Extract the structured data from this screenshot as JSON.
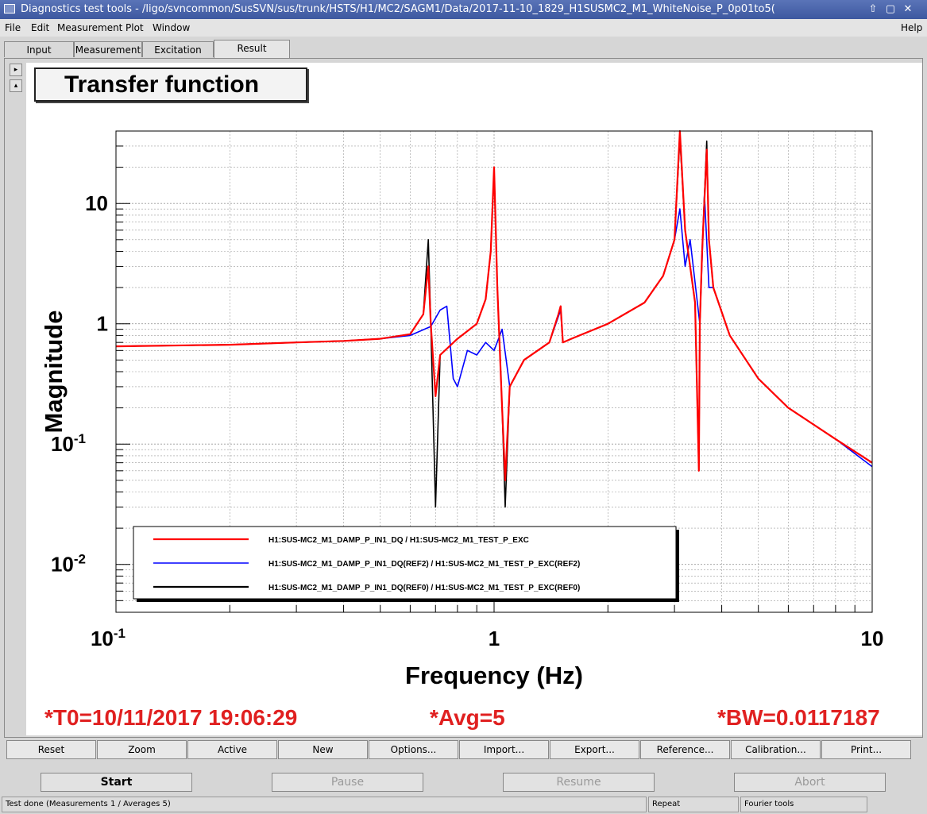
{
  "window": {
    "title": "Diagnostics test tools - /ligo/svncommon/SusSVN/sus/trunk/HSTS/H1/MC2/SAGM1/Data/2017-11-10_1829_H1SUSMC2_M1_WhiteNoise_P_0p01to5("
  },
  "menu": {
    "file": "File",
    "edit": "Edit",
    "measurement": "Measurement",
    "plot": "Plot",
    "window": "Window",
    "help": "Help"
  },
  "tabs": [
    "Input",
    "Measurement",
    "Excitation",
    "Result"
  ],
  "plot": {
    "title": "Transfer function"
  },
  "chart_data": {
    "type": "line",
    "xlabel": "Frequency (Hz)",
    "ylabel": "Magnitude",
    "xscale": "log",
    "yscale": "log",
    "xlim": [
      0.1,
      10
    ],
    "ylim": [
      0.004,
      40
    ],
    "x_ticks": [
      "10^-1",
      "1",
      "10"
    ],
    "y_ticks": [
      "10^-2",
      "10^-1",
      "1",
      "10"
    ],
    "grid": true,
    "legend_position": "bottom-center",
    "series": [
      {
        "name": "H1:SUS-MC2_M1_DAMP_P_IN1_DQ / H1:SUS-MC2_M1_TEST_P_EXC",
        "color": "#ff0000",
        "x": [
          0.1,
          0.2,
          0.3,
          0.4,
          0.5,
          0.6,
          0.65,
          0.67,
          0.68,
          0.7,
          0.72,
          0.8,
          0.9,
          0.95,
          0.98,
          1.0,
          1.02,
          1.05,
          1.07,
          1.1,
          1.2,
          1.4,
          1.48,
          1.5,
          1.52,
          1.6,
          2.0,
          2.5,
          2.8,
          3.0,
          3.1,
          3.2,
          3.3,
          3.4,
          3.48,
          3.5,
          3.55,
          3.65,
          3.7,
          3.8,
          4.2,
          5.0,
          6.0,
          8.0,
          10.0
        ],
        "y": [
          0.65,
          0.67,
          0.7,
          0.72,
          0.75,
          0.82,
          1.2,
          3.0,
          1.0,
          0.25,
          0.55,
          0.75,
          1.0,
          1.6,
          4.0,
          20.0,
          2.0,
          0.2,
          0.05,
          0.3,
          0.5,
          0.7,
          1.2,
          1.4,
          0.7,
          0.75,
          1.0,
          1.5,
          2.5,
          5.0,
          40.0,
          6.0,
          3.0,
          1.5,
          0.06,
          1.0,
          4.0,
          28.0,
          5.0,
          2.0,
          0.8,
          0.35,
          0.2,
          0.11,
          0.07
        ]
      },
      {
        "name": "H1:SUS-MC2_M1_DAMP_P_IN1_DQ(REF2) / H1:SUS-MC2_M1_TEST_P_EXC(REF2)",
        "color": "#0000ff",
        "x": [
          0.1,
          0.2,
          0.3,
          0.4,
          0.5,
          0.6,
          0.68,
          0.72,
          0.75,
          0.78,
          0.8,
          0.85,
          0.9,
          0.95,
          1.0,
          1.05,
          1.1,
          1.2,
          1.4,
          1.5,
          1.52,
          1.6,
          2.0,
          2.5,
          2.8,
          3.0,
          3.1,
          3.2,
          3.3,
          3.5,
          3.6,
          3.7,
          3.8,
          4.2,
          5.0,
          6.0,
          8.0,
          10.0
        ],
        "y": [
          0.65,
          0.67,
          0.7,
          0.72,
          0.75,
          0.8,
          0.95,
          1.3,
          1.4,
          0.35,
          0.3,
          0.6,
          0.55,
          0.7,
          0.6,
          0.9,
          0.3,
          0.5,
          0.7,
          1.3,
          0.7,
          0.75,
          1.0,
          1.5,
          2.5,
          5.0,
          9.0,
          3.0,
          5.0,
          1.0,
          12.0,
          2.0,
          2.0,
          0.8,
          0.35,
          0.2,
          0.11,
          0.065
        ]
      },
      {
        "name": "H1:SUS-MC2_M1_DAMP_P_IN1_DQ(REF0) / H1:SUS-MC2_M1_TEST_P_EXC(REF0)",
        "color": "#000000",
        "x": [
          0.1,
          0.2,
          0.3,
          0.4,
          0.5,
          0.6,
          0.65,
          0.67,
          0.68,
          0.7,
          0.72,
          0.8,
          0.9,
          0.95,
          0.98,
          1.0,
          1.02,
          1.05,
          1.07,
          1.1,
          1.2,
          1.4,
          1.48,
          1.5,
          1.52,
          1.6,
          2.0,
          2.5,
          2.8,
          3.0,
          3.1,
          3.2,
          3.3,
          3.4,
          3.48,
          3.5,
          3.55,
          3.65,
          3.7,
          3.8,
          4.2,
          5.0,
          6.0,
          8.0,
          10.0
        ],
        "y": [
          0.65,
          0.67,
          0.7,
          0.72,
          0.75,
          0.82,
          1.2,
          5.0,
          1.0,
          0.03,
          0.55,
          0.75,
          1.0,
          1.6,
          4.0,
          19.0,
          2.0,
          0.2,
          0.03,
          0.3,
          0.5,
          0.7,
          1.2,
          1.4,
          0.7,
          0.75,
          1.0,
          1.5,
          2.5,
          5.0,
          35.0,
          6.0,
          3.0,
          1.5,
          0.06,
          1.0,
          4.0,
          33.0,
          5.0,
          2.0,
          0.8,
          0.35,
          0.2,
          0.11,
          0.07
        ]
      }
    ]
  },
  "stats": {
    "t0": "*T0=10/11/2017 19:06:29",
    "avg": "*Avg=5",
    "bw": "*BW=0.0117187"
  },
  "buttons": [
    "Reset",
    "Zoom",
    "Active",
    "New",
    "Options...",
    "Import...",
    "Export...",
    "Reference...",
    "Calibration...",
    "Print..."
  ],
  "controls": {
    "start": "Start",
    "pause": "Pause",
    "resume": "Resume",
    "abort": "Abort"
  },
  "status": {
    "message": "Test done (Measurements 1 / Averages 5)",
    "mode": "Repeat",
    "tool": "Fourier tools"
  }
}
